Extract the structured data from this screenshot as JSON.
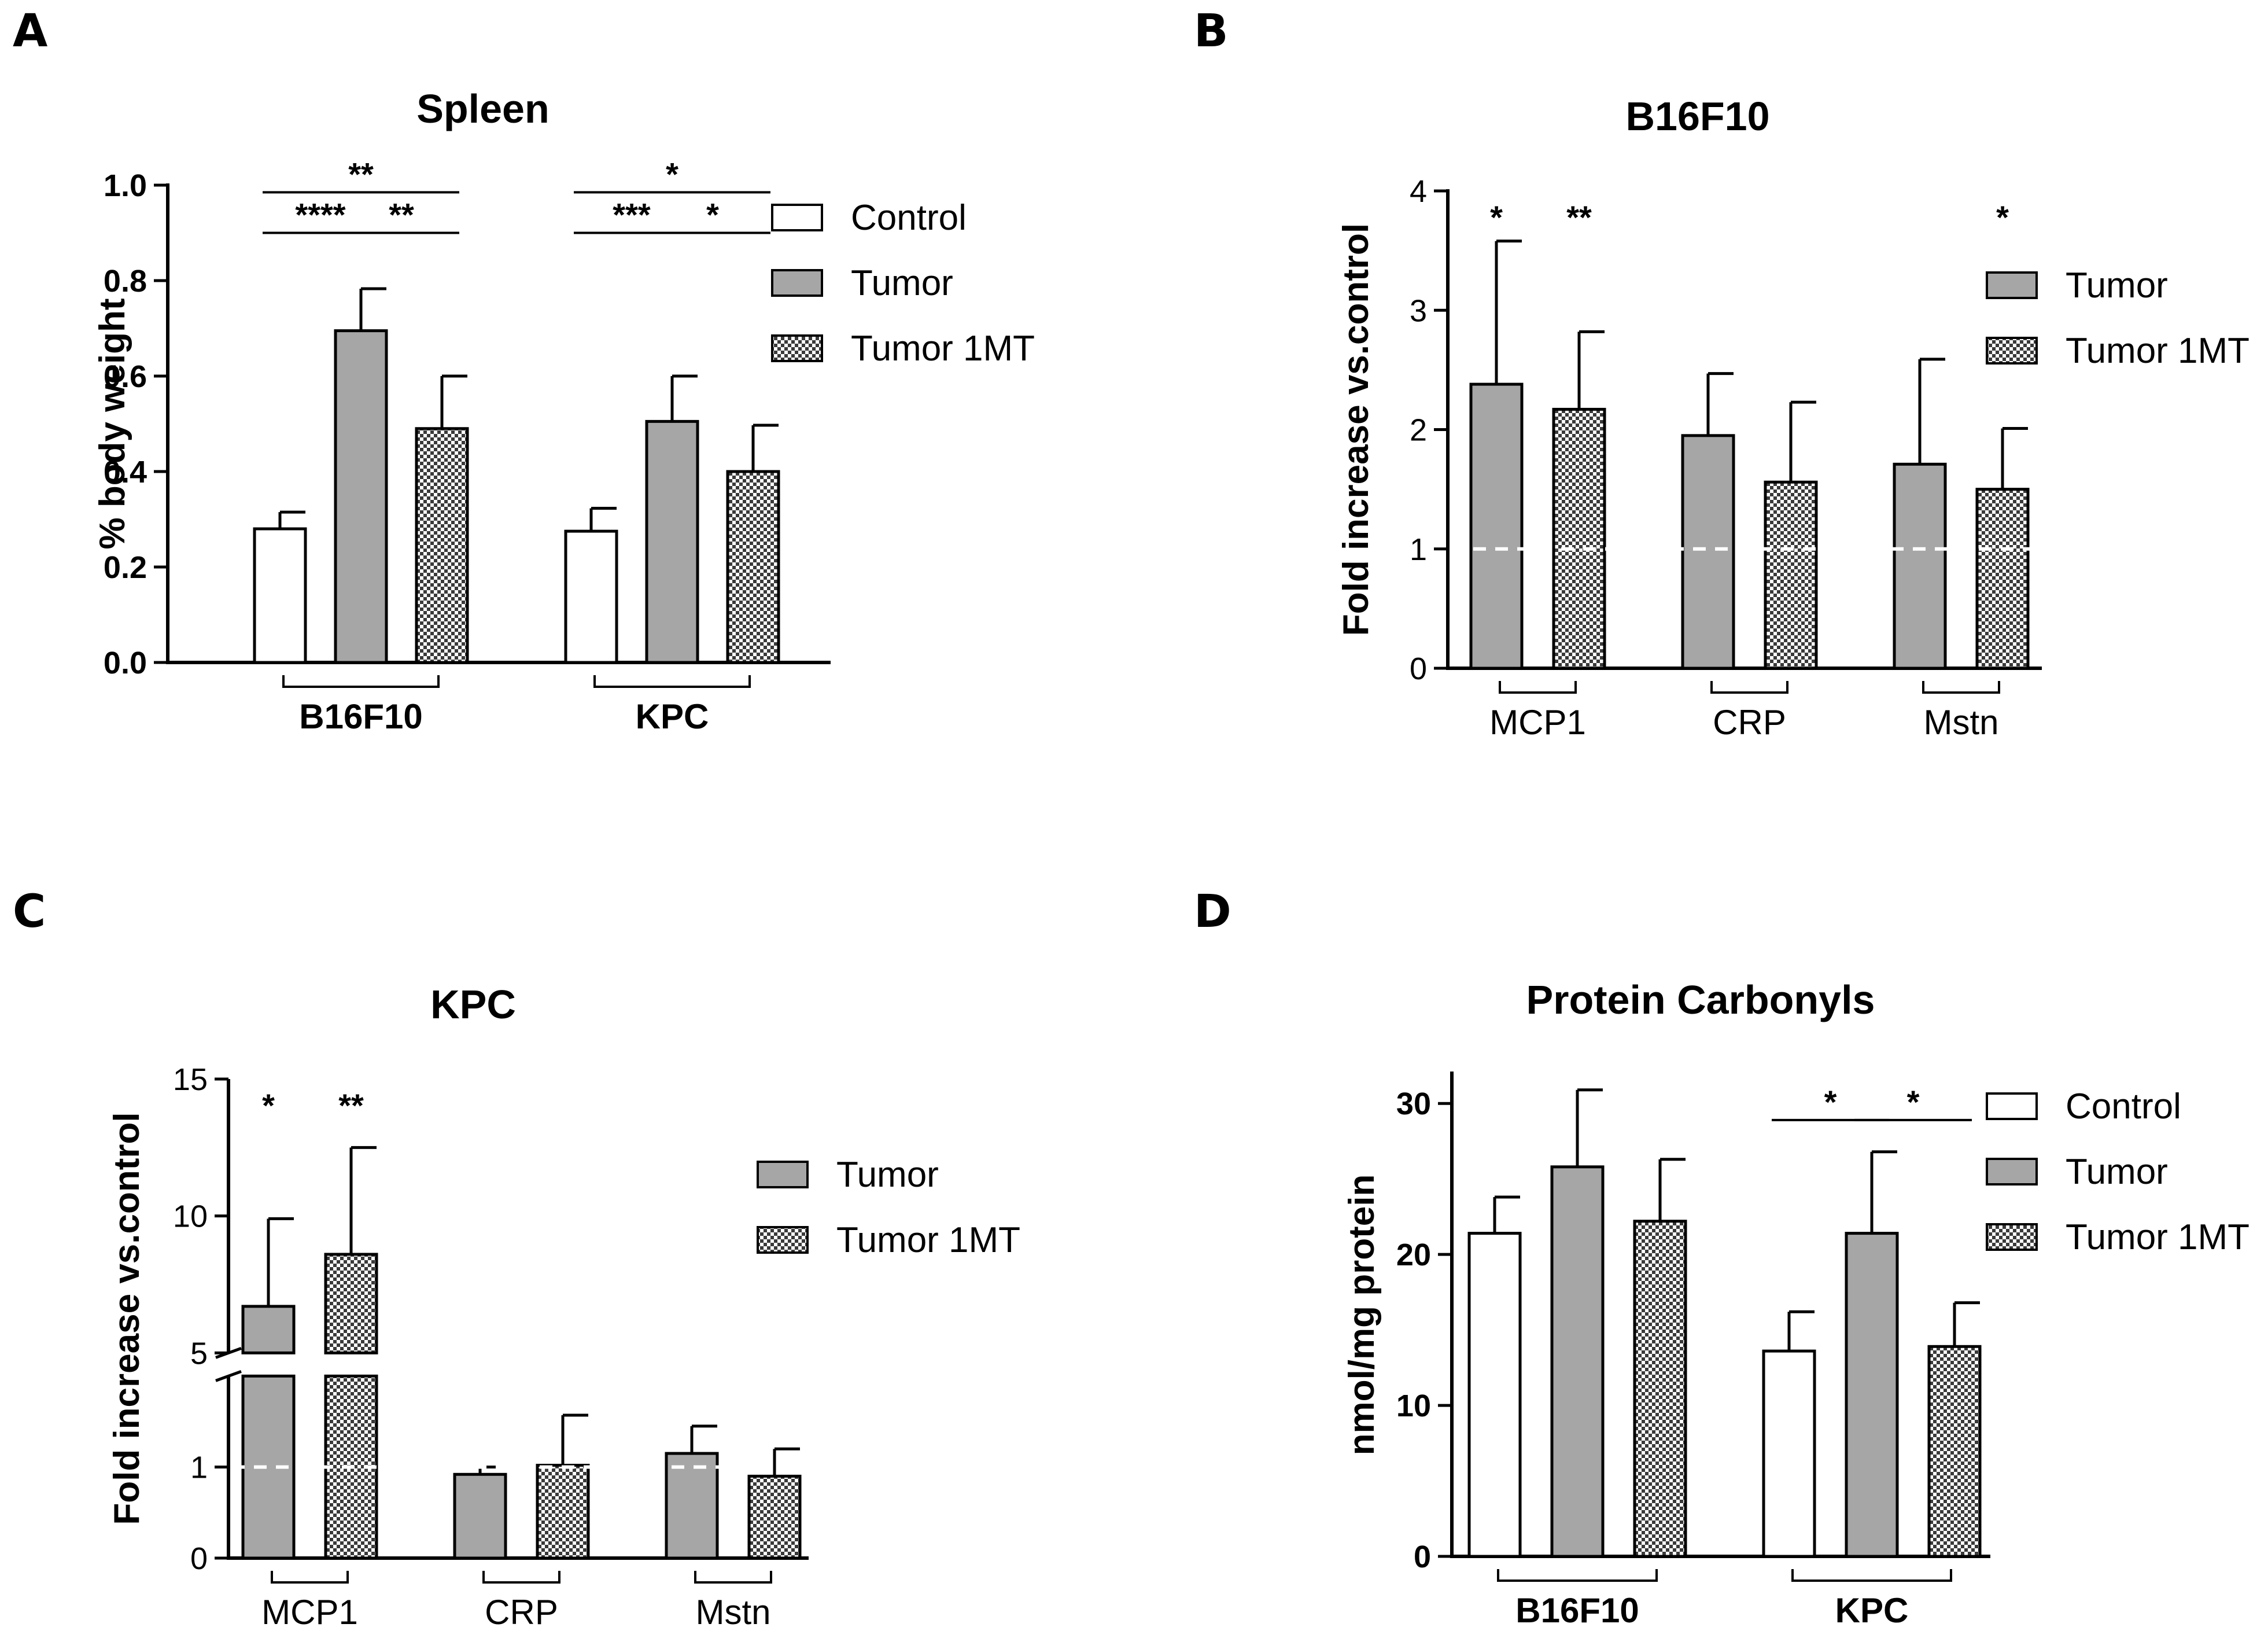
{
  "colors": {
    "control": "#ffffff",
    "tumor": "#a6a6a6",
    "tumor_1mt_pattern": "checker",
    "stroke": "#000000",
    "reference_line": "#ffffff"
  },
  "chart_data": [
    {
      "panel": "A",
      "type": "bar",
      "title": "Spleen",
      "ylabel": "% body weight",
      "xlabel": "",
      "ylim": [
        0,
        1.0
      ],
      "yticks": [
        0.0,
        0.2,
        0.4,
        0.6,
        0.8,
        1.0
      ],
      "ytick_labels": [
        "0.0",
        "0.2",
        "0.4",
        "0.6",
        "0.8",
        "1.0"
      ],
      "groups": [
        "B16F10",
        "KPC"
      ],
      "legend": [
        "Control",
        "Tumor",
        "Tumor 1MT"
      ],
      "series": [
        {
          "name": "Control",
          "values": [
            0.28,
            0.275
          ],
          "errors": [
            0.035,
            0.048
          ]
        },
        {
          "name": "Tumor",
          "values": [
            0.695,
            0.505
          ],
          "errors": [
            0.088,
            0.095
          ]
        },
        {
          "name": "Tumor 1MT",
          "values": [
            0.49,
            0.4
          ],
          "errors": [
            0.11,
            0.097
          ]
        }
      ],
      "significance": [
        {
          "group": 0,
          "from": 0,
          "to": 2,
          "label": "**",
          "level": 0.985
        },
        {
          "group": 0,
          "from": 0,
          "to": 1,
          "label": "****",
          "level": 0.9
        },
        {
          "group": 0,
          "from": 1,
          "to": 2,
          "label": "**",
          "level": 0.9
        },
        {
          "group": 1,
          "from": 0,
          "to": 2,
          "label": "*",
          "level": 0.985
        },
        {
          "group": 1,
          "from": 0,
          "to": 1,
          "label": "***",
          "level": 0.9
        },
        {
          "group": 1,
          "from": 1,
          "to": 2,
          "label": "*",
          "level": 0.9
        }
      ]
    },
    {
      "panel": "B",
      "type": "bar",
      "title": "B16F10",
      "ylabel": "Fold increase vs.control",
      "xlabel": "",
      "ylim": [
        0,
        4
      ],
      "yticks": [
        0,
        1,
        2,
        3,
        4
      ],
      "ytick_labels": [
        "0",
        "1",
        "2",
        "3",
        "4"
      ],
      "groups": [
        "MCP1",
        "CRP",
        "Mstn"
      ],
      "legend": [
        "Tumor",
        "Tumor 1MT"
      ],
      "reference_line": 1,
      "series": [
        {
          "name": "Tumor",
          "values": [
            2.38,
            1.95,
            1.71
          ],
          "errors": [
            1.2,
            0.52,
            0.88
          ]
        },
        {
          "name": "Tumor 1MT",
          "values": [
            2.17,
            1.56,
            1.5
          ],
          "errors": [
            0.65,
            0.67,
            0.51
          ]
        }
      ],
      "annotations": [
        {
          "group": 0,
          "series": 0,
          "label": "*"
        },
        {
          "group": 0,
          "series": 1,
          "label": "**"
        },
        {
          "group": 2,
          "series": 1,
          "label": "*"
        }
      ]
    },
    {
      "panel": "C",
      "type": "bar",
      "title": "KPC",
      "ylabel": "Fold increase vs.control",
      "xlabel": "",
      "ylim": [
        0,
        15
      ],
      "yticks": [
        0,
        1,
        5,
        10,
        15
      ],
      "ytick_labels": [
        "0",
        "1",
        "5",
        "10",
        "15"
      ],
      "axis_break": [
        2,
        5
      ],
      "groups": [
        "MCP1",
        "CRP",
        "Mstn"
      ],
      "legend": [
        "Tumor",
        "Tumor 1MT"
      ],
      "reference_line": 1,
      "series": [
        {
          "name": "Tumor",
          "values": [
            6.7,
            0.92,
            1.15
          ],
          "errors": [
            3.2,
            0.08,
            0.3
          ]
        },
        {
          "name": "Tumor 1MT",
          "values": [
            8.6,
            1.02,
            0.9
          ],
          "errors": [
            3.9,
            0.55,
            0.3
          ]
        }
      ],
      "annotations": [
        {
          "group": 0,
          "series": 0,
          "label": "*"
        },
        {
          "group": 0,
          "series": 1,
          "label": "**"
        }
      ]
    },
    {
      "panel": "D",
      "type": "bar",
      "title": "Protein Carbonyls",
      "ylabel": "nmol/mg protein",
      "xlabel": "",
      "ylim": [
        0,
        32
      ],
      "yticks": [
        0,
        10,
        20,
        30
      ],
      "ytick_labels": [
        "0",
        "10",
        "20",
        "30"
      ],
      "groups": [
        "B16F10",
        "KPC"
      ],
      "legend": [
        "Control",
        "Tumor",
        "Tumor 1MT"
      ],
      "series": [
        {
          "name": "Control",
          "values": [
            21.4,
            13.6
          ],
          "errors": [
            2.4,
            2.6
          ]
        },
        {
          "name": "Tumor",
          "values": [
            25.8,
            21.4
          ],
          "errors": [
            5.1,
            5.4
          ]
        },
        {
          "name": "Tumor 1MT",
          "values": [
            22.2,
            13.9
          ],
          "errors": [
            4.1,
            2.9
          ]
        }
      ],
      "significance": [
        {
          "group": 1,
          "from": 0,
          "to": 1,
          "label": "*",
          "level": 28.9
        },
        {
          "group": 1,
          "from": 1,
          "to": 2,
          "label": "*",
          "level": 28.9
        }
      ]
    }
  ]
}
